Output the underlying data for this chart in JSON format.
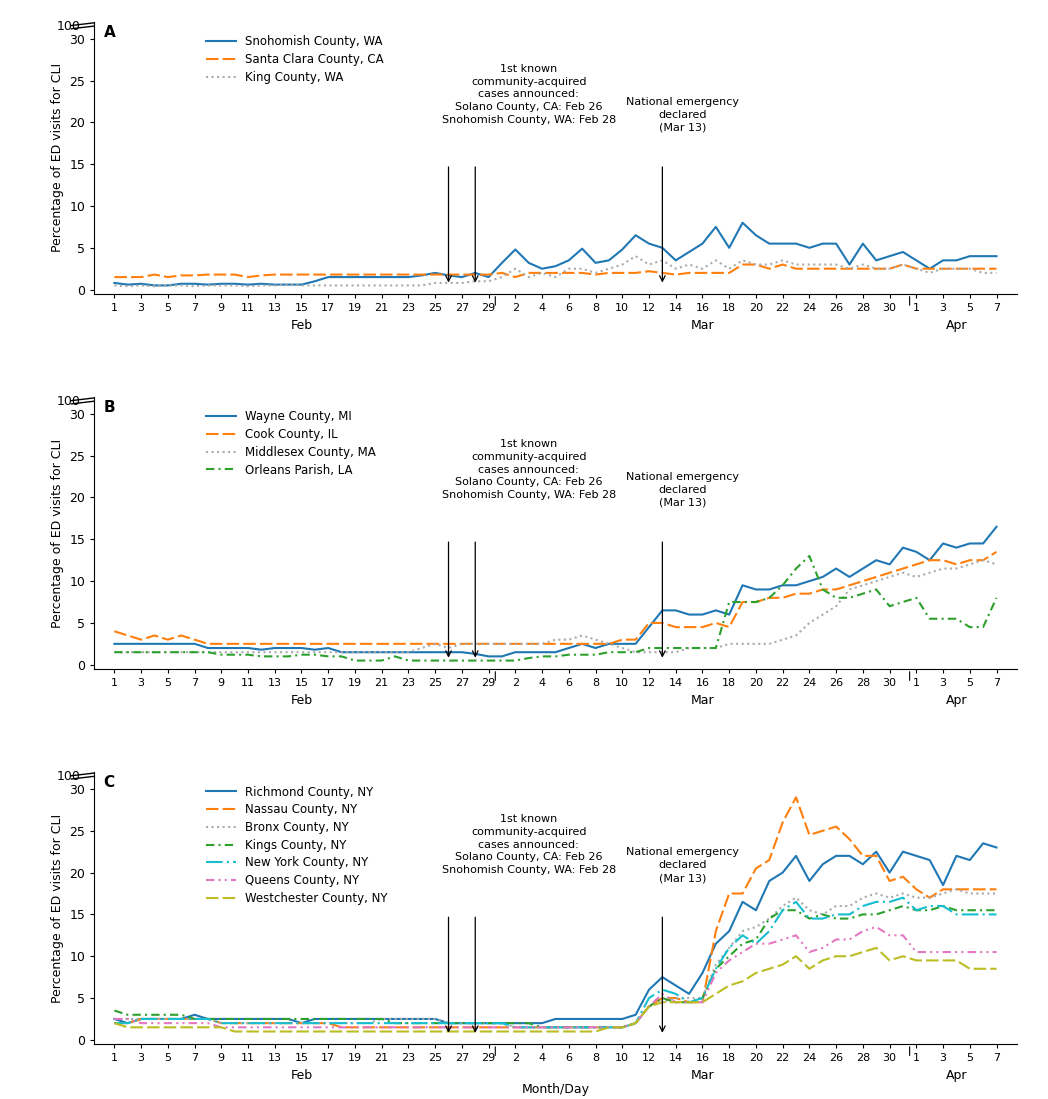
{
  "panel_A_label": "A",
  "panel_B_label": "B",
  "panel_C_label": "C",
  "ylabel": "Percentage of ED visits for CLI",
  "xlabel": "Month/Day",
  "panelA": {
    "Snohomish County, WA": {
      "color": "#1f77b4",
      "linestyle": "solid",
      "linewidth": 1.5,
      "values": [
        0.8,
        0.6,
        0.7,
        0.5,
        0.5,
        0.7,
        0.7,
        0.6,
        0.7,
        0.7,
        0.6,
        0.7,
        0.6,
        0.6,
        0.6,
        1.0,
        1.5,
        1.5,
        1.5,
        1.5,
        1.5,
        1.5,
        1.5,
        1.7,
        2.0,
        1.7,
        1.5,
        2.0,
        1.5,
        3.2,
        4.8,
        3.2,
        2.5,
        2.8,
        3.5,
        4.9,
        3.2,
        3.5,
        4.8,
        6.5,
        5.5,
        5.0,
        3.5,
        4.5,
        5.5,
        7.5,
        5.0,
        8.0,
        6.5,
        5.5,
        5.5,
        5.5,
        5.0,
        5.5,
        5.5,
        3.0,
        5.5,
        3.5,
        4.0,
        4.5,
        3.5,
        2.5,
        3.5,
        3.5,
        4.0,
        4.0,
        4.0
      ]
    },
    "Santa Clara County, CA": {
      "color": "#ff7f0e",
      "linestyle": "dashed",
      "linewidth": 1.5,
      "values": [
        1.5,
        1.5,
        1.5,
        1.8,
        1.5,
        1.7,
        1.7,
        1.8,
        1.8,
        1.8,
        1.5,
        1.7,
        1.8,
        1.8,
        1.8,
        1.8,
        1.8,
        1.8,
        1.8,
        1.8,
        1.8,
        1.8,
        1.8,
        1.8,
        1.8,
        1.8,
        1.8,
        1.8,
        1.8,
        2.0,
        1.5,
        2.0,
        2.0,
        2.0,
        2.0,
        2.0,
        1.8,
        2.0,
        2.0,
        2.0,
        2.2,
        2.0,
        1.8,
        2.0,
        2.0,
        2.0,
        2.0,
        3.0,
        3.0,
        2.5,
        3.0,
        2.5,
        2.5,
        2.5,
        2.5,
        2.5,
        2.5,
        2.5,
        2.5,
        3.0,
        2.5,
        2.5,
        2.5,
        2.5,
        2.5,
        2.5,
        2.5
      ]
    },
    "King County, WA": {
      "color": "#aaaaaa",
      "linestyle": "dotted",
      "linewidth": 1.5,
      "values": [
        0.5,
        0.4,
        0.5,
        0.4,
        0.5,
        0.5,
        0.4,
        0.5,
        0.5,
        0.5,
        0.4,
        0.5,
        0.5,
        0.6,
        0.5,
        0.5,
        0.5,
        0.5,
        0.5,
        0.5,
        0.5,
        0.5,
        0.5,
        0.5,
        0.8,
        0.8,
        0.8,
        1.0,
        1.0,
        1.5,
        2.5,
        1.5,
        2.0,
        1.5,
        2.5,
        2.5,
        2.0,
        2.5,
        3.0,
        4.0,
        3.0,
        3.5,
        2.5,
        3.0,
        2.5,
        3.5,
        2.5,
        3.5,
        3.0,
        3.0,
        3.5,
        3.0,
        3.0,
        3.0,
        3.0,
        2.5,
        3.0,
        2.5,
        2.5,
        3.0,
        2.5,
        2.0,
        2.5,
        2.5,
        2.5,
        2.0,
        2.0
      ]
    }
  },
  "panelB": {
    "Wayne County, MI": {
      "color": "#1f77b4",
      "linestyle": "solid",
      "linewidth": 1.5,
      "values": [
        2.5,
        2.5,
        2.5,
        2.5,
        2.5,
        2.5,
        2.5,
        2.0,
        2.0,
        2.0,
        2.0,
        1.8,
        2.0,
        2.0,
        2.0,
        1.8,
        2.0,
        1.5,
        1.5,
        1.5,
        1.5,
        1.5,
        1.5,
        1.5,
        1.5,
        1.5,
        1.5,
        1.3,
        1.0,
        1.0,
        1.5,
        1.5,
        1.5,
        1.5,
        2.0,
        2.5,
        2.0,
        2.5,
        2.5,
        2.5,
        4.5,
        6.5,
        6.5,
        6.0,
        6.0,
        6.5,
        6.0,
        9.5,
        9.0,
        9.0,
        9.5,
        9.5,
        10.0,
        10.5,
        11.5,
        10.5,
        11.5,
        12.5,
        12.0,
        14.0,
        13.5,
        12.5,
        14.5,
        14.0,
        14.5,
        14.5,
        16.5
      ]
    },
    "Cook County, IL": {
      "color": "#ff7f0e",
      "linestyle": "dashed",
      "linewidth": 1.5,
      "values": [
        4.0,
        3.5,
        3.0,
        3.5,
        3.0,
        3.5,
        3.0,
        2.5,
        2.5,
        2.5,
        2.5,
        2.5,
        2.5,
        2.5,
        2.5,
        2.5,
        2.5,
        2.5,
        2.5,
        2.5,
        2.5,
        2.5,
        2.5,
        2.5,
        2.5,
        2.5,
        2.5,
        2.5,
        2.5,
        2.5,
        2.5,
        2.5,
        2.5,
        2.5,
        2.5,
        2.5,
        2.5,
        2.5,
        3.0,
        3.0,
        5.0,
        5.0,
        4.5,
        4.5,
        4.5,
        5.0,
        4.5,
        7.5,
        7.5,
        8.0,
        8.0,
        8.5,
        8.5,
        9.0,
        9.0,
        9.5,
        10.0,
        10.5,
        11.0,
        11.5,
        12.0,
        12.5,
        12.5,
        12.0,
        12.5,
        12.5,
        13.5
      ]
    },
    "Middlesex County, MA": {
      "color": "#aaaaaa",
      "linestyle": "dotted",
      "linewidth": 1.5,
      "values": [
        1.5,
        1.5,
        1.5,
        1.5,
        1.5,
        1.5,
        1.5,
        1.5,
        1.5,
        1.5,
        1.5,
        1.5,
        1.5,
        1.5,
        1.5,
        1.5,
        1.5,
        1.5,
        1.5,
        1.5,
        1.5,
        1.5,
        1.5,
        2.0,
        2.5,
        2.0,
        2.5,
        2.5,
        2.5,
        2.5,
        2.5,
        2.5,
        2.5,
        3.0,
        3.0,
        3.5,
        3.0,
        2.5,
        2.0,
        1.5,
        1.5,
        1.5,
        1.5,
        2.0,
        2.0,
        2.0,
        2.5,
        2.5,
        2.5,
        2.5,
        3.0,
        3.5,
        5.0,
        6.0,
        7.0,
        9.0,
        9.5,
        10.0,
        10.5,
        11.0,
        10.5,
        11.0,
        11.5,
        11.5,
        12.0,
        12.5,
        12.0
      ]
    },
    "Orleans Parish, LA": {
      "color": "#2ca02c",
      "linestyle": "dashed",
      "linewidth": 1.5,
      "dashes": [
        4,
        2,
        1,
        2
      ],
      "values": [
        1.5,
        1.5,
        1.5,
        1.5,
        1.5,
        1.5,
        1.5,
        1.5,
        1.2,
        1.2,
        1.2,
        1.0,
        1.0,
        1.0,
        1.2,
        1.2,
        1.0,
        1.0,
        0.5,
        0.5,
        0.5,
        1.0,
        0.5,
        0.5,
        0.5,
        0.5,
        0.5,
        0.5,
        0.5,
        0.5,
        0.5,
        0.8,
        1.0,
        1.0,
        1.2,
        1.2,
        1.2,
        1.5,
        1.5,
        1.5,
        2.0,
        2.0,
        2.0,
        2.0,
        2.0,
        2.0,
        7.5,
        7.5,
        7.5,
        8.0,
        9.5,
        11.5,
        13.0,
        9.0,
        8.0,
        8.0,
        8.5,
        9.0,
        7.0,
        7.5,
        8.0,
        5.5,
        5.5,
        5.5,
        4.5,
        4.5,
        8.0
      ]
    }
  },
  "panelC": {
    "Richmond County, NY": {
      "color": "#1f77b4",
      "linestyle": "solid",
      "linewidth": 1.5,
      "values": [
        2.5,
        2.0,
        2.5,
        2.5,
        2.5,
        2.5,
        3.0,
        2.5,
        2.5,
        2.5,
        2.5,
        2.5,
        2.5,
        2.5,
        2.0,
        2.5,
        2.5,
        2.5,
        2.5,
        2.5,
        2.5,
        2.5,
        2.5,
        2.5,
        2.5,
        2.0,
        2.0,
        2.0,
        2.0,
        2.0,
        2.0,
        2.0,
        2.0,
        2.5,
        2.5,
        2.5,
        2.5,
        2.5,
        2.5,
        3.0,
        6.0,
        7.5,
        6.5,
        5.5,
        8.0,
        11.5,
        13.0,
        16.5,
        15.5,
        19.0,
        20.0,
        22.0,
        19.0,
        21.0,
        22.0,
        22.0,
        21.0,
        22.5,
        20.0,
        22.5,
        22.0,
        21.5,
        18.5,
        22.0,
        21.5,
        23.5,
        23.0
      ]
    },
    "Nassau County, NY": {
      "color": "#ff7f0e",
      "linestyle": "dashed",
      "linewidth": 1.5,
      "values": [
        2.0,
        2.0,
        2.5,
        2.5,
        2.5,
        2.5,
        2.5,
        2.5,
        2.0,
        2.0,
        2.0,
        2.0,
        2.0,
        2.0,
        2.0,
        2.0,
        2.0,
        1.5,
        1.5,
        1.5,
        1.5,
        1.5,
        1.5,
        1.5,
        1.5,
        1.5,
        1.5,
        1.5,
        1.5,
        1.5,
        1.5,
        1.5,
        1.5,
        1.5,
        1.5,
        1.5,
        1.5,
        1.5,
        1.5,
        2.0,
        4.0,
        5.0,
        5.0,
        4.5,
        4.5,
        13.0,
        17.5,
        17.5,
        20.5,
        21.5,
        26.0,
        29.0,
        24.5,
        25.0,
        25.5,
        24.0,
        22.0,
        22.0,
        19.0,
        19.5,
        18.0,
        17.0,
        18.0,
        18.0,
        18.0,
        18.0,
        18.0
      ]
    },
    "Bronx County, NY": {
      "color": "#aaaaaa",
      "linestyle": "dotted",
      "linewidth": 1.5,
      "values": [
        2.5,
        2.5,
        2.5,
        2.5,
        2.5,
        2.5,
        2.5,
        2.5,
        2.0,
        2.0,
        2.0,
        2.0,
        2.0,
        2.0,
        2.0,
        2.0,
        2.0,
        2.0,
        2.0,
        2.0,
        2.5,
        2.5,
        2.5,
        2.5,
        2.5,
        2.0,
        2.0,
        2.0,
        2.0,
        2.0,
        1.5,
        1.5,
        1.5,
        1.5,
        1.5,
        1.5,
        1.5,
        1.5,
        1.5,
        2.0,
        4.0,
        4.5,
        5.0,
        5.0,
        5.0,
        9.0,
        11.0,
        13.0,
        13.5,
        14.5,
        16.0,
        17.0,
        15.5,
        15.0,
        16.0,
        16.0,
        17.0,
        17.5,
        17.0,
        17.5,
        17.0,
        17.0,
        17.5,
        18.0,
        17.5,
        17.5,
        17.5
      ]
    },
    "Kings County, NY": {
      "color": "#2ca02c",
      "linestyle": "dashed",
      "linewidth": 1.5,
      "dashes": [
        4,
        2,
        1,
        2
      ],
      "values": [
        3.5,
        3.0,
        3.0,
        3.0,
        3.0,
        3.0,
        2.5,
        2.5,
        2.5,
        2.5,
        2.5,
        2.5,
        2.5,
        2.5,
        2.5,
        2.5,
        2.5,
        2.5,
        2.5,
        2.5,
        2.5,
        2.0,
        2.0,
        2.0,
        2.0,
        2.0,
        2.0,
        2.0,
        2.0,
        2.0,
        2.0,
        2.0,
        1.5,
        1.5,
        1.5,
        1.5,
        1.5,
        1.5,
        1.5,
        2.0,
        4.0,
        5.0,
        4.5,
        4.5,
        5.0,
        8.5,
        10.0,
        11.5,
        12.0,
        14.5,
        15.5,
        15.5,
        14.5,
        15.0,
        14.5,
        14.5,
        15.0,
        15.0,
        15.5,
        16.0,
        15.5,
        15.5,
        16.0,
        15.5,
        15.5,
        15.5,
        15.5
      ]
    },
    "New York County, NY": {
      "color": "#17becf",
      "linestyle": "dashed",
      "linewidth": 1.5,
      "dashes": [
        8,
        2,
        1,
        2
      ],
      "values": [
        2.0,
        2.0,
        2.5,
        2.5,
        2.5,
        2.5,
        2.5,
        2.5,
        2.0,
        2.0,
        2.0,
        2.0,
        2.0,
        2.0,
        2.0,
        2.0,
        2.0,
        2.0,
        2.0,
        2.0,
        2.0,
        2.0,
        2.0,
        2.0,
        2.0,
        2.0,
        2.0,
        2.0,
        2.0,
        2.0,
        1.5,
        1.5,
        1.5,
        1.5,
        1.5,
        1.5,
        1.5,
        1.5,
        1.5,
        2.0,
        5.0,
        6.0,
        5.5,
        4.5,
        5.0,
        8.5,
        11.0,
        12.5,
        11.5,
        13.0,
        15.5,
        16.5,
        14.5,
        14.5,
        15.0,
        15.0,
        16.0,
        16.5,
        16.5,
        17.0,
        15.5,
        16.0,
        16.0,
        15.0,
        15.0,
        15.0,
        15.0
      ]
    },
    "Queens County, NY": {
      "color": "#e377c2",
      "linestyle": "dashdot",
      "linewidth": 1.5,
      "values": [
        2.5,
        2.5,
        2.0,
        2.0,
        2.0,
        2.0,
        2.0,
        2.0,
        1.5,
        1.5,
        1.5,
        1.5,
        1.5,
        1.5,
        1.5,
        1.5,
        1.5,
        1.5,
        1.5,
        1.5,
        1.5,
        1.5,
        1.5,
        1.5,
        1.5,
        1.5,
        1.5,
        1.5,
        1.5,
        1.5,
        1.5,
        1.5,
        1.5,
        1.5,
        1.5,
        1.5,
        1.5,
        1.5,
        1.5,
        2.0,
        4.0,
        5.5,
        4.5,
        4.5,
        4.5,
        8.0,
        9.5,
        10.5,
        11.5,
        11.5,
        12.0,
        12.5,
        10.5,
        11.0,
        12.0,
        12.0,
        13.0,
        13.5,
        12.5,
        12.5,
        10.5,
        10.5,
        10.5,
        10.5,
        10.5,
        10.5,
        10.5
      ]
    },
    "Westchester County, NY": {
      "color": "#bcbd22",
      "linestyle": "dashed",
      "linewidth": 1.5,
      "dashes": [
        6,
        2
      ],
      "values": [
        2.0,
        1.5,
        1.5,
        1.5,
        1.5,
        1.5,
        1.5,
        1.5,
        1.5,
        1.0,
        1.0,
        1.0,
        1.0,
        1.0,
        1.0,
        1.0,
        1.0,
        1.0,
        1.0,
        1.0,
        1.0,
        1.0,
        1.0,
        1.0,
        1.0,
        1.0,
        1.0,
        1.0,
        1.0,
        1.0,
        1.0,
        1.0,
        1.0,
        1.0,
        1.0,
        1.0,
        1.0,
        1.5,
        1.5,
        2.0,
        4.0,
        4.5,
        4.5,
        4.5,
        4.5,
        5.5,
        6.5,
        7.0,
        8.0,
        8.5,
        9.0,
        10.0,
        8.5,
        9.5,
        10.0,
        10.0,
        10.5,
        11.0,
        9.5,
        10.0,
        9.5,
        9.5,
        9.5,
        9.5,
        8.5,
        8.5,
        8.5
      ]
    }
  }
}
